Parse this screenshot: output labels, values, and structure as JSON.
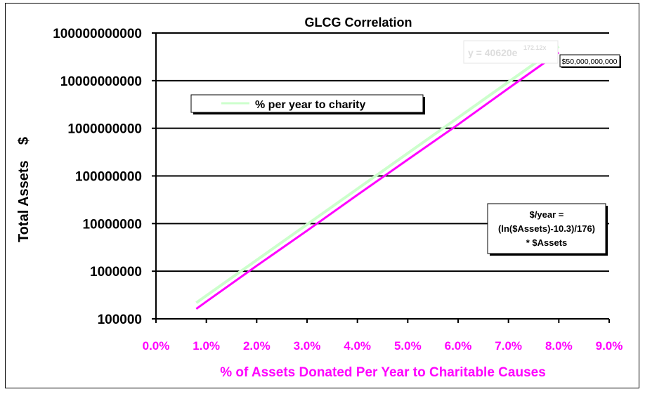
{
  "chart_data": {
    "type": "line",
    "title": "GLCG Correlation",
    "xlabel": "% of Assets Donated Per Year to Charitable Causes",
    "ylabel": "Total Assets    $",
    "xlim": [
      0,
      9
    ],
    "ylim": [
      100000,
      100000000000
    ],
    "yscale": "log",
    "grid": "horizontal major",
    "x_tick_labels": [
      "0.0%",
      "1.0%",
      "2.0%",
      "3.0%",
      "4.0%",
      "5.0%",
      "6.0%",
      "7.0%",
      "8.0%",
      "9.0%"
    ],
    "y_tick_labels": [
      "100000",
      "1000000",
      "10000000",
      "100000000",
      "1000000000",
      "10000000000",
      "100000000000"
    ],
    "series": [
      {
        "x": [
          0.8,
          1,
          2,
          3,
          4,
          5,
          6,
          7,
          8
        ],
        "values": [
          162000,
          230000,
          1300000,
          7100000,
          40000000,
          220000000,
          1200000000,
          6900000000,
          39000000000
        ],
        "color": "#ff00ff"
      }
    ],
    "trendline": {
      "type": "exponential",
      "equation": "y = 40620e",
      "exponent": "172.12x",
      "x_range": [
        0.8,
        8
      ],
      "color": "#ccffcc"
    },
    "legend": {
      "label": "% per year to charity",
      "placement": "top-left"
    },
    "data_label": "$50,000,000,000",
    "annotation": [
      "$/year =",
      "(ln($Assets)-10.3)/176)",
      "* $Assets"
    ],
    "colors": {
      "axis_text": "#ff00ff",
      "series": "#ff00ff",
      "trendline": "#ccffcc"
    }
  }
}
